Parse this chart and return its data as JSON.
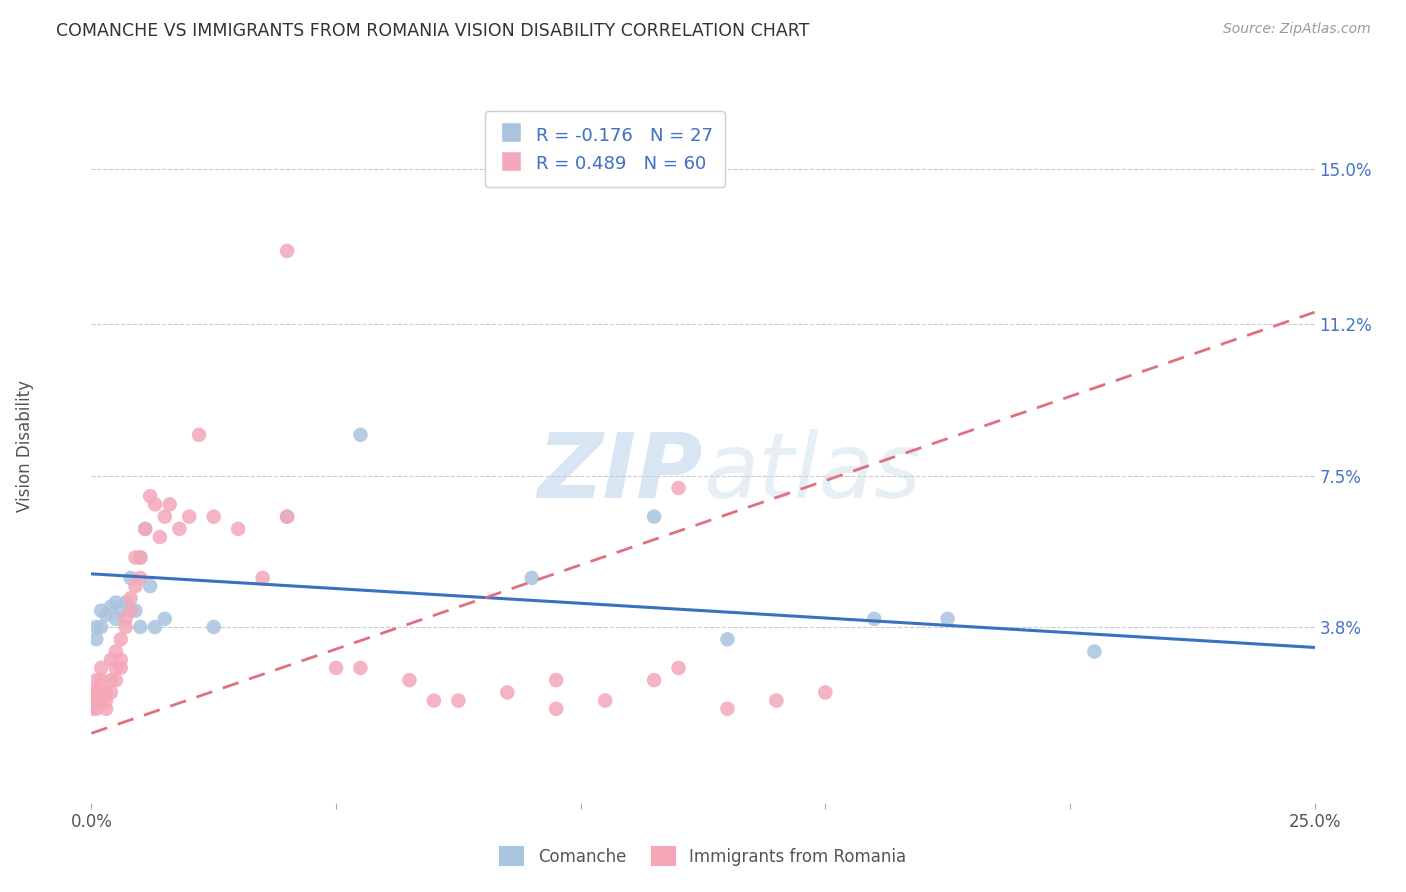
{
  "title": "COMANCHE VS IMMIGRANTS FROM ROMANIA VISION DISABILITY CORRELATION CHART",
  "source": "Source: ZipAtlas.com",
  "ylabel": "Vision Disability",
  "ytick_labels": [
    "3.8%",
    "7.5%",
    "11.2%",
    "15.0%"
  ],
  "ytick_values": [
    0.038,
    0.075,
    0.112,
    0.15
  ],
  "xmin": 0.0,
  "xmax": 0.25,
  "ymin": -0.005,
  "ymax": 0.163,
  "watermark": "ZIPAtlas",
  "legend_r1": "R = -0.176   N = 27",
  "legend_r2": "R = 0.489   N = 60",
  "legend_label1": "Comanche",
  "legend_label2": "Immigrants from Romania",
  "color_blue": "#aac4e0",
  "color_pink": "#f4a7b9",
  "color_blue_line": "#3a72c0",
  "color_pink_line": "#e07080",
  "color_blue_text": "#4472c4",
  "color_gray_grid": "#cccccc",
  "comanche_x": [
    0.001,
    0.001,
    0.002,
    0.002,
    0.003,
    0.004,
    0.005,
    0.005,
    0.006,
    0.007,
    0.008,
    0.009,
    0.01,
    0.011,
    0.012,
    0.013,
    0.025,
    0.04,
    0.055,
    0.09,
    0.115,
    0.13,
    0.16,
    0.175,
    0.205,
    0.01,
    0.015
  ],
  "comanche_y": [
    0.035,
    0.038,
    0.042,
    0.038,
    0.041,
    0.043,
    0.04,
    0.044,
    0.042,
    0.044,
    0.05,
    0.042,
    0.055,
    0.062,
    0.048,
    0.038,
    0.038,
    0.065,
    0.085,
    0.05,
    0.065,
    0.035,
    0.04,
    0.04,
    0.032,
    0.038,
    0.04
  ],
  "comanche_line_x0": 0.0,
  "comanche_line_y0": 0.051,
  "comanche_line_x1": 0.25,
  "comanche_line_y1": 0.033,
  "romania_x": [
    0.0,
    0.0,
    0.0,
    0.001,
    0.001,
    0.001,
    0.001,
    0.002,
    0.002,
    0.002,
    0.002,
    0.003,
    0.003,
    0.003,
    0.004,
    0.004,
    0.004,
    0.005,
    0.005,
    0.005,
    0.006,
    0.006,
    0.006,
    0.007,
    0.007,
    0.008,
    0.008,
    0.009,
    0.009,
    0.01,
    0.01,
    0.011,
    0.012,
    0.013,
    0.014,
    0.015,
    0.016,
    0.018,
    0.02,
    0.022,
    0.025,
    0.03,
    0.035,
    0.04,
    0.05,
    0.055,
    0.065,
    0.075,
    0.085,
    0.095,
    0.105,
    0.115,
    0.12,
    0.13,
    0.14,
    0.15,
    0.12,
    0.095,
    0.07,
    0.04
  ],
  "romania_y": [
    0.02,
    0.022,
    0.018,
    0.025,
    0.02,
    0.022,
    0.018,
    0.025,
    0.022,
    0.028,
    0.02,
    0.02,
    0.022,
    0.018,
    0.025,
    0.03,
    0.022,
    0.028,
    0.032,
    0.025,
    0.03,
    0.035,
    0.028,
    0.04,
    0.038,
    0.042,
    0.045,
    0.048,
    0.055,
    0.05,
    0.055,
    0.062,
    0.07,
    0.068,
    0.06,
    0.065,
    0.068,
    0.062,
    0.065,
    0.085,
    0.065,
    0.062,
    0.05,
    0.065,
    0.028,
    0.028,
    0.025,
    0.02,
    0.022,
    0.018,
    0.02,
    0.025,
    0.028,
    0.018,
    0.02,
    0.022,
    0.072,
    0.025,
    0.02,
    0.13
  ],
  "romania_line_x0": 0.0,
  "romania_line_y0": 0.012,
  "romania_line_x1": 0.25,
  "romania_line_y1": 0.115
}
